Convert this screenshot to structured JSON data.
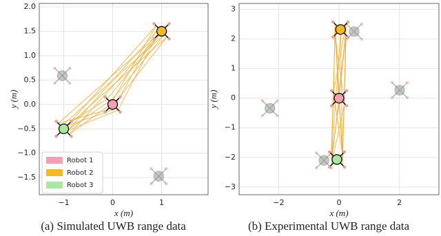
{
  "chart_data": [
    {
      "type": "scatter",
      "caption": "(a) Simulated UWB range data",
      "x_label": "x (m)",
      "y_label": "y (m)",
      "xlim": [
        -1.5,
        1.95
      ],
      "ylim": [
        -1.85,
        2.07
      ],
      "xticks": [
        {
          "value": -1,
          "label": "−1"
        },
        0,
        1
      ],
      "yticks": [
        {
          "value": -1.5,
          "label": "−1.5"
        },
        {
          "value": -1,
          "label": "−1.0"
        },
        {
          "value": -0.5,
          "label": "−0.5"
        },
        {
          "value": 0,
          "label": "0.0"
        },
        {
          "value": 0.5,
          "label": "0.5"
        },
        {
          "value": 1,
          "label": "1.0"
        },
        {
          "value": 1.5,
          "label": "1.5"
        },
        {
          "value": 2,
          "label": "2.0"
        }
      ],
      "grid": true,
      "legend": "lower left",
      "series": [
        {
          "name": "Robot 1",
          "color": "#f4a0b4",
          "x": [
            0
          ],
          "values": [
            0
          ]
        },
        {
          "name": "Robot 2",
          "color": "#f5b820",
          "x": [
            1
          ],
          "values": [
            1.5
          ]
        },
        {
          "name": "Robot 3",
          "color": "#a8e8a0",
          "x": [
            -1
          ],
          "values": [
            -0.5
          ]
        }
      ],
      "estimates": {
        "color": "#9a9a9a",
        "x": [
          -1.03,
          0.94
        ],
        "values": [
          0.59,
          -1.47
        ]
      }
    },
    {
      "type": "scatter",
      "caption": "(b) Experimental UWB range data",
      "x_label": "x (m)",
      "y_label": "y (m)",
      "xlim": [
        -3.31,
        3.31
      ],
      "ylim": [
        -3.26,
        3.2
      ],
      "xticks": [
        {
          "value": -2,
          "label": "−2"
        },
        0,
        2
      ],
      "yticks": [
        {
          "value": -3,
          "label": "−3"
        },
        {
          "value": -2,
          "label": "−2"
        },
        {
          "value": -1,
          "label": "−1"
        },
        0,
        1,
        2,
        3
      ],
      "grid": true,
      "series": [
        {
          "color": "#f4a0b4",
          "x": [
            0
          ],
          "values": [
            0
          ]
        },
        {
          "color": "#f5b820",
          "x": [
            0.05
          ],
          "values": [
            2.32
          ]
        },
        {
          "color": "#a8e8a0",
          "x": [
            -0.07
          ],
          "values": [
            -2.07
          ]
        }
      ],
      "estimates": {
        "color": "#9a9a9a",
        "x": [
          -2.29,
          2.01,
          -0.5,
          0.5
        ],
        "values": [
          -0.34,
          0.27,
          -2.1,
          2.25
        ]
      }
    }
  ]
}
